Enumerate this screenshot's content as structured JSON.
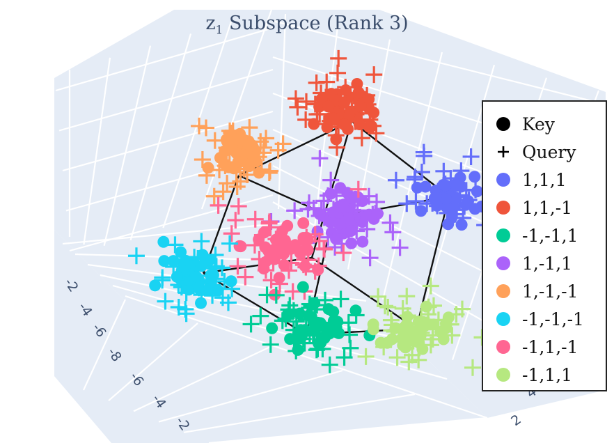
{
  "title_main": "z",
  "title_sub": "1",
  "title_rest": " Subspace (Rank 3)",
  "chart_data": {
    "type": "scatter3d",
    "title": "z1 Subspace (Rank 3)",
    "legend": {
      "position": "right",
      "markers": [
        {
          "name": "Key",
          "symbol": "circle",
          "color": "#000000"
        },
        {
          "name": "Query",
          "symbol": "cross",
          "color": "#000000"
        }
      ]
    },
    "series": [
      {
        "name": "1,1,1",
        "color": "#636efa",
        "center": [
          1,
          1,
          1
        ]
      },
      {
        "name": "1,1,-1",
        "color": "#ef553b",
        "center": [
          1,
          1,
          -1
        ]
      },
      {
        "name": "-1,-1,1",
        "color": "#00cc96",
        "center": [
          -1,
          -1,
          1
        ]
      },
      {
        "name": "1,-1,1",
        "color": "#ab63fa",
        "center": [
          1,
          -1,
          1
        ]
      },
      {
        "name": "1,-1,-1",
        "color": "#ffa15a",
        "center": [
          1,
          -1,
          -1
        ]
      },
      {
        "name": "-1,-1,-1",
        "color": "#19d3f3",
        "center": [
          -1,
          -1,
          -1
        ]
      },
      {
        "name": "-1,1,-1",
        "color": "#ff6692",
        "center": [
          -1,
          1,
          -1
        ]
      },
      {
        "name": "-1,1,1",
        "color": "#b6e880",
        "center": [
          -1,
          1,
          1
        ]
      }
    ],
    "cube_edges": true,
    "axis_ticks_left": [
      "-2",
      "-4",
      "-6",
      "-8",
      "-6",
      "-4",
      "-2"
    ],
    "axis_ticks_right": [
      "4",
      "2"
    ],
    "grid": true
  }
}
